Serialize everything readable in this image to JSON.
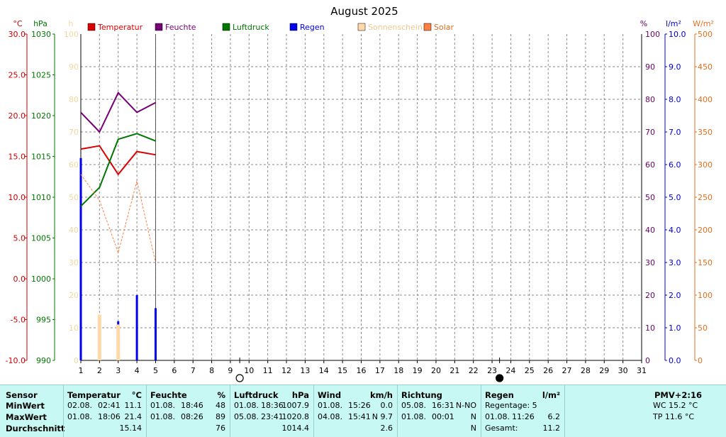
{
  "title": "August 2025",
  "chart_data": {
    "type": "line",
    "title": "August 2025",
    "x": [
      1,
      2,
      3,
      4,
      5
    ],
    "categories": [
      "1",
      "2",
      "3",
      "4",
      "5",
      "6",
      "7",
      "8",
      "9",
      "10",
      "11",
      "12",
      "13",
      "14",
      "15",
      "16",
      "17",
      "18",
      "19",
      "20",
      "21",
      "22",
      "23",
      "24",
      "25",
      "26",
      "27",
      "28",
      "29",
      "30",
      "31"
    ],
    "xlim": [
      1,
      31
    ],
    "grid": true,
    "legend_position": "top",
    "axes": {
      "temp": {
        "unit": "°C",
        "min": -10,
        "max": 30,
        "step": 5,
        "color": "#cc0000",
        "ticks": [
          "30.0",
          "25.0",
          "20.0",
          "15.0",
          "10.0",
          "5.0",
          "0.0",
          "-5.0",
          "-10.0"
        ]
      },
      "press": {
        "unit": "hPa",
        "min": 990,
        "max": 1030,
        "step": 5,
        "color": "#007700",
        "ticks": [
          "1030",
          "1025",
          "1020",
          "1015",
          "1010",
          "1005",
          "1000",
          "995",
          "990"
        ]
      },
      "sun": {
        "unit": "h",
        "min": 0,
        "max": 100,
        "step": 10,
        "color": "#f0d8a0",
        "ticks": [
          "100",
          "90",
          "80",
          "70",
          "60",
          "50",
          "40",
          "30",
          "20",
          "10",
          "0"
        ]
      },
      "humid": {
        "unit": "%",
        "min": 0,
        "max": 100,
        "step": 10,
        "color": "#660066",
        "ticks": [
          "100",
          "90",
          "80",
          "70",
          "60",
          "50",
          "40",
          "30",
          "20",
          "10",
          "0"
        ]
      },
      "rain": {
        "unit": "l/m²",
        "min": 0,
        "max": 10,
        "step": 1,
        "color": "#0000cc",
        "ticks": [
          "10.0",
          "9.0",
          "8.0",
          "7.0",
          "6.0",
          "5.0",
          "4.0",
          "3.0",
          "2.0",
          "1.0",
          "0.0"
        ]
      },
      "solar": {
        "unit": "W/m²",
        "min": 0,
        "max": 500,
        "step": 50,
        "color": "#e07020",
        "ticks": [
          "500",
          "450",
          "400",
          "350",
          "300",
          "250",
          "200",
          "150",
          "100",
          "50",
          "0"
        ]
      }
    },
    "series": [
      {
        "name": "Temperatur",
        "axis": "temp",
        "color": "#dd0000",
        "kind": "line",
        "values": [
          15.9,
          16.3,
          12.8,
          15.6,
          15.2
        ]
      },
      {
        "name": "Feuchte",
        "axis": "humid",
        "color": "#770077",
        "kind": "line",
        "values": [
          76,
          70,
          82,
          76,
          79
        ]
      },
      {
        "name": "Luftdruck",
        "axis": "press",
        "color": "#007700",
        "kind": "line",
        "values": [
          1008.9,
          1011.2,
          1017.1,
          1017.8,
          1016.9
        ]
      },
      {
        "name": "Regen",
        "axis": "rain",
        "color": "#0000ee",
        "kind": "bar",
        "values": [
          6.2,
          0.2,
          1.2,
          2.0,
          1.6
        ]
      },
      {
        "name": "Sonnenschein",
        "axis": "sun",
        "color": "#ffd8a8",
        "kind": "bar",
        "values": [
          0,
          14,
          11,
          0,
          0
        ]
      },
      {
        "name": "Solar",
        "axis": "solar",
        "color": "#ff7f40",
        "kind": "dash",
        "values": [
          285,
          245,
          165,
          275,
          150
        ]
      }
    ],
    "moon_markers": [
      {
        "day": 9.5,
        "phase": "full-moon-icon"
      },
      {
        "day": 23.4,
        "phase": "new-moon-icon"
      }
    ]
  },
  "stats": {
    "sensor": {
      "label": "Sensor",
      "rows": [
        "MinWert",
        "MaxWert",
        "Durchschnitt"
      ]
    },
    "temperatur": {
      "label": "Temperatur",
      "unit": "°C",
      "rows": [
        {
          "date": "02.08.",
          "time": "02:41",
          "value": "11.1"
        },
        {
          "date": "01.08.",
          "time": "18:06",
          "value": "21.4"
        },
        {
          "date": "",
          "time": "",
          "value": "15.14"
        }
      ]
    },
    "feuchte": {
      "label": "Feuchte",
      "unit": "%",
      "rows": [
        {
          "date": "01.08.",
          "time": "18:46",
          "value": "48"
        },
        {
          "date": "01.08.",
          "time": "08:26",
          "value": "89"
        },
        {
          "date": "",
          "time": "",
          "value": "76"
        }
      ]
    },
    "luftdruck": {
      "label": "Luftdruck",
      "unit": "hPa",
      "rows": [
        {
          "date": "01.08.",
          "time": "18:36",
          "value": "1007.9"
        },
        {
          "date": "05.08.",
          "time": "23:41",
          "value": "1020.8"
        },
        {
          "date": "",
          "time": "",
          "value": "1014.4"
        }
      ]
    },
    "wind": {
      "label": "Wind",
      "unit": "km/h",
      "rows": [
        {
          "date": "01.08.",
          "time": "15:26",
          "value": "0.0"
        },
        {
          "date": "04.08.",
          "time": "15:41",
          "value": "N 9.7"
        },
        {
          "date": "",
          "time": "",
          "value": "2.6"
        }
      ]
    },
    "richtung": {
      "label": "Richtung",
      "rows": [
        {
          "date": "05.08.",
          "time": "16:31",
          "value": "N-NO"
        },
        {
          "date": "01.08.",
          "time": "00:01",
          "value": "N"
        },
        {
          "date": "",
          "time": "",
          "value": "N"
        }
      ]
    },
    "regen": {
      "label": "Regen",
      "unit": "l/m²",
      "regentage": "Regentage: 5",
      "max": {
        "date": "01.08.",
        "time": "11:26",
        "value": "6.2"
      },
      "gesamt_label": "Gesamt:",
      "gesamt": "11.2"
    },
    "pmv": {
      "label": "PMV+2:16",
      "wc": "WC 15.2 °C",
      "tp": "TP 11.6 °C"
    }
  }
}
